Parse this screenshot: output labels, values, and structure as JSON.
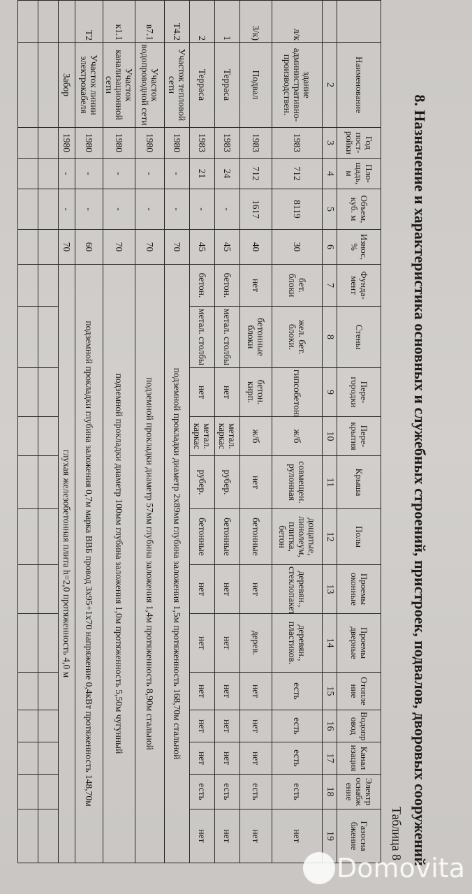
{
  "document": {
    "title": "8. Назначение и характеристика основных и служебных строений, пристроек, подвалов, дворовых сооружений",
    "table_label": "Таблица 8",
    "headers": [
      "",
      "Наименование",
      "Год пост-ройки",
      "Пло-щадь, м",
      "Объем, куб. м",
      "Износ, %",
      "Фунда-мент",
      "Стены",
      "Пере-городки",
      "Пере-крытия",
      "Крыша",
      "Полы",
      "Проемы оконные",
      "Проемы дверные",
      "Отопле ние",
      "Водопр овод",
      "Канал изация",
      "Электр оснабж ение",
      "Газосна бжение"
    ],
    "column_numbers": [
      "",
      "2",
      "3",
      "4",
      "5",
      "6",
      "7",
      "8",
      "9",
      "10",
      "11",
      "12",
      "13",
      "14",
      "15",
      "16",
      "17",
      "18",
      "19"
    ],
    "rows": [
      {
        "cells": [
          "л/к",
          "здание административно-производствен.",
          "1983",
          "712",
          "8119",
          "30",
          "бет. блоки",
          "жел. бет. блоки.",
          "гипсобетонные",
          "ж/б",
          "совмещен. рулонная",
          "дощатые, линолеум, плитка, бетон",
          "деревян., стеклопакеты",
          "деревян., пластиков.",
          "есть",
          "есть",
          "есть",
          "есть",
          "нет"
        ]
      },
      {
        "cells": [
          "3/к)",
          "Подвал",
          "1983",
          "712",
          "1617",
          "40",
          "нет",
          "бетонные блоки",
          "бетон. кирп.",
          "ж/б",
          "нет",
          "бетонные",
          "нет",
          "дерев.",
          "нет",
          "нет",
          "нет",
          "есть",
          "нет"
        ]
      },
      {
        "cells": [
          "1",
          "Терраса",
          "1983",
          "24",
          "-",
          "45",
          "бетон.",
          "метал. столбы",
          "нет",
          "метал. каркас",
          "рубер.",
          "бетонные",
          "нет",
          "нет",
          "нет",
          "нет",
          "нет",
          "есть",
          "нет"
        ]
      },
      {
        "cells": [
          "2",
          "Терраса",
          "1983",
          "21",
          "-",
          "45",
          "бетон.",
          "метал. столбы",
          "нет",
          "метал. каркас",
          "рубер.",
          "бетонные",
          "нет",
          "нет",
          "нет",
          "нет",
          "нет",
          "есть",
          "нет"
        ]
      }
    ],
    "network_rows": [
      {
        "cut": "Т4.2",
        "name": "Участок тепловой сети",
        "year": "1980",
        "area": "-",
        "volume": "-",
        "wear": "70",
        "description": "подземной прокладки диаметр 2х89мм глубина заложения 1,5м протяженность 168,70м стальной"
      },
      {
        "cut": "в7.1",
        "name": "Участок водопроводной сети",
        "year": "1980",
        "area": "-",
        "volume": "-",
        "wear": "70",
        "description": "подземной прокладки диаметр 57мм глубина заложения 1,4м протяженность 8,90м стальной"
      },
      {
        "cut": "к1.1",
        "name": "Участок канализационной сети",
        "year": "1980",
        "area": "-",
        "volume": "-",
        "wear": "70",
        "description": "подземной прокладки диаметр 100мм глубина заложения 1,0м протяженность 5,50м чугунный"
      },
      {
        "cut": "Т2",
        "name": "Участок линии электрокабеля",
        "year": "1980",
        "area": "-",
        "volume": "-",
        "wear": "60",
        "description": "подземной прокладки глубина заложения 0,7м марка ВВБ провод 3х95+1х70 напряжение 0,4кВт протяженность 148,70м"
      },
      {
        "cut": "",
        "name": "Забор",
        "year": "1980",
        "area": "-",
        "volume": "-",
        "wear": "70",
        "description": "глухая железобетонная плита h=2,0 протяженность 4,0 м"
      }
    ]
  },
  "watermark": "Domovita"
}
